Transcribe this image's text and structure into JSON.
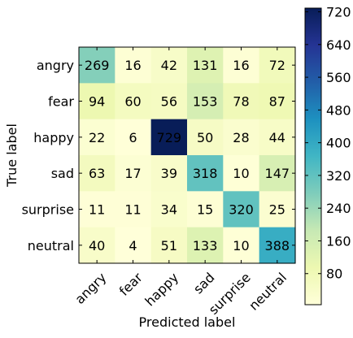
{
  "chart_data": {
    "type": "heatmap",
    "title": "",
    "xlabel": "Predicted label",
    "ylabel": "True label",
    "x_categories": [
      "angry",
      "fear",
      "happy",
      "sad",
      "surprise",
      "neutral"
    ],
    "y_categories": [
      "angry",
      "fear",
      "happy",
      "sad",
      "surprise",
      "neutral"
    ],
    "values": [
      [
        269,
        16,
        42,
        131,
        16,
        72
      ],
      [
        94,
        60,
        56,
        153,
        78,
        87
      ],
      [
        22,
        6,
        729,
        50,
        28,
        44
      ],
      [
        63,
        17,
        39,
        318,
        10,
        147
      ],
      [
        11,
        11,
        34,
        15,
        320,
        25
      ],
      [
        40,
        4,
        51,
        133,
        10,
        388
      ]
    ],
    "colormap": "YlGnBu",
    "colorbar": {
      "vmin": 4,
      "vmax": 729,
      "ticks": [
        80,
        160,
        240,
        320,
        400,
        480,
        560,
        640,
        720
      ]
    },
    "x_tick_rotation": 45
  }
}
